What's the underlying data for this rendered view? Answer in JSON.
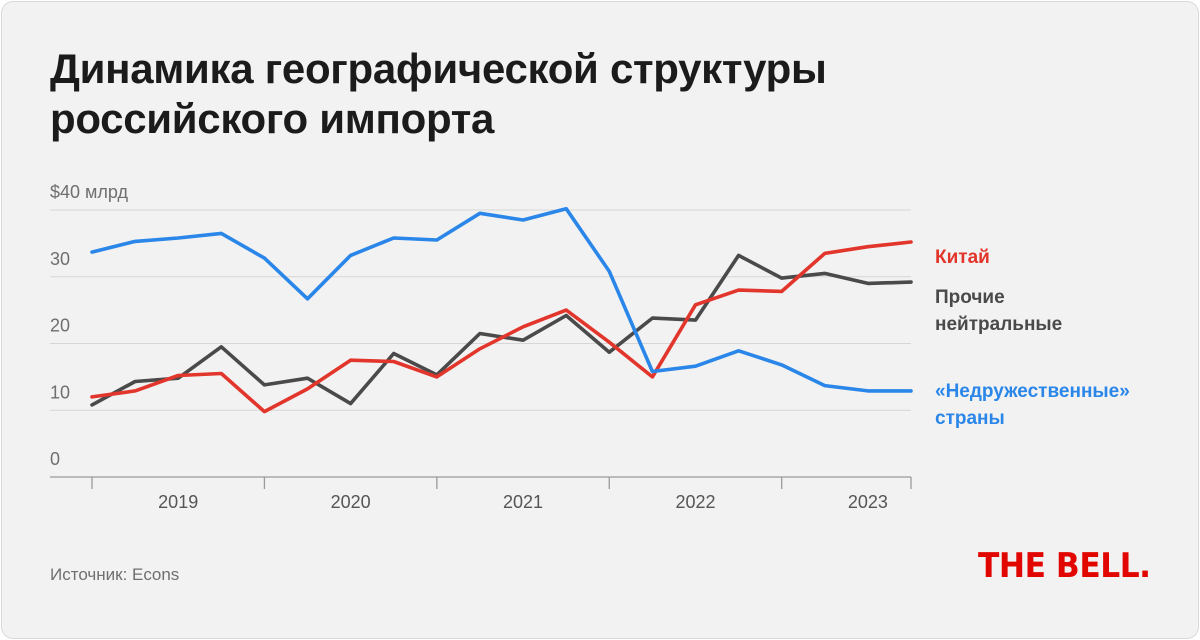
{
  "title": "Динамика географической структуры российского импорта",
  "source": "Источник: Econs",
  "logo_text": "THE BELL.",
  "chart_data": {
    "type": "line",
    "ylim": [
      0,
      40
    ],
    "y_ticks": [
      {
        "value": 0,
        "label": "0"
      },
      {
        "value": 10,
        "label": "10"
      },
      {
        "value": 20,
        "label": "20"
      },
      {
        "value": 30,
        "label": "30"
      },
      {
        "value": 40,
        "label": "$40 млрд"
      }
    ],
    "x_ticks": [
      "2019",
      "2020",
      "2021",
      "2022",
      "2023"
    ],
    "x": [
      "2019 Q1",
      "2019 Q2",
      "2019 Q3",
      "2019 Q4",
      "2020 Q1",
      "2020 Q2",
      "2020 Q3",
      "2020 Q4",
      "2021 Q1",
      "2021 Q2",
      "2021 Q3",
      "2021 Q4",
      "2022 Q1",
      "2022 Q2",
      "2022 Q3",
      "2022 Q4",
      "2023 Q1",
      "2023 Q2",
      "2023 Q3",
      "2023 Q4"
    ],
    "grid": true,
    "legend": "right",
    "series": [
      {
        "name": "Китай",
        "label_lines": [
          "Китай"
        ],
        "color": "#e2352b",
        "values": [
          12.0,
          12.9,
          15.2,
          15.5,
          9.8,
          13.2,
          17.5,
          17.3,
          15.0,
          19.2,
          22.5,
          25.0,
          20.2,
          15.0,
          25.8,
          28.0,
          27.8,
          33.5,
          34.5,
          35.2
        ]
      },
      {
        "name": "Прочие нейтральные",
        "label_lines": [
          "Прочие",
          "нейтральные"
        ],
        "color": "#4a4a4a",
        "values": [
          10.8,
          14.3,
          14.8,
          19.5,
          13.8,
          14.8,
          11.0,
          18.5,
          15.3,
          21.5,
          20.5,
          24.2,
          18.7,
          23.8,
          23.5,
          33.2,
          29.8,
          30.5,
          29.0,
          29.2
        ]
      },
      {
        "name": "«Недружественные» страны",
        "label_lines": [
          "«Недружественные»",
          "страны"
        ],
        "color": "#2a86e8",
        "values": [
          33.7,
          35.3,
          35.8,
          36.5,
          32.8,
          26.7,
          33.2,
          35.8,
          35.5,
          39.5,
          38.5,
          40.2,
          30.8,
          15.8,
          16.6,
          18.9,
          16.8,
          13.7,
          12.9,
          12.9
        ]
      }
    ]
  }
}
